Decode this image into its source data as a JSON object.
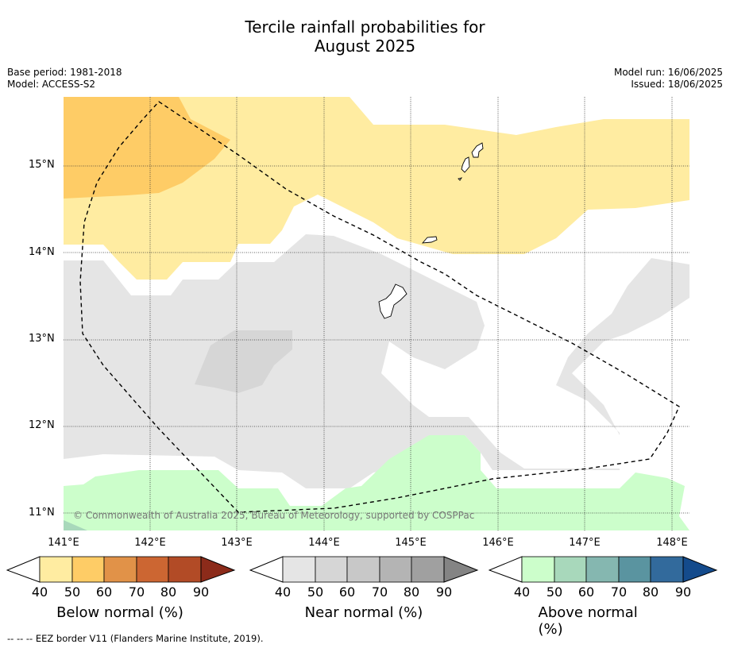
{
  "title_line1": "Tercile rainfall probabilities for",
  "title_line2": "August 2025",
  "meta_left": {
    "base_period": "Base period: 1981-2018",
    "model": "Model: ACCESS-S2"
  },
  "meta_right": {
    "model_run": "Model run: 16/06/2025",
    "issued": "Issued: 18/06/2025"
  },
  "map": {
    "latitude_labels": [
      "15°N",
      "14°N",
      "13°N",
      "12°N",
      "11°N"
    ],
    "longitude_labels": [
      "141°E",
      "142°E",
      "143°E",
      "144°E",
      "145°E",
      "146°E",
      "147°E",
      "148°E"
    ],
    "copyright": "© Commonwealth of Australia 2025, Bureau of Meteorology, supported by COSPPac",
    "colors": {
      "below_50": "#ffeca1",
      "below_60": "#fecc66",
      "near_50": "#e5e5e5",
      "near_60": "#d6d6d6",
      "above_50": "#ccfecb",
      "above_60": "#a8d8bb"
    }
  },
  "colorbars": [
    {
      "title": "Below normal (%)",
      "ticks": [
        "40",
        "50",
        "60",
        "70",
        "80",
        "90"
      ],
      "colors": [
        "#ffeca1",
        "#fecc66",
        "#e19248",
        "#cc6632",
        "#b24b26",
        "#8c2b1a"
      ]
    },
    {
      "title": "Near normal (%)",
      "ticks": [
        "40",
        "50",
        "60",
        "70",
        "80",
        "90"
      ],
      "colors": [
        "#e5e5e5",
        "#d6d6d6",
        "#c8c8c8",
        "#b4b4b4",
        "#a0a0a0",
        "#848484"
      ]
    },
    {
      "title": "Above normal (%)",
      "ticks": [
        "40",
        "50",
        "60",
        "70",
        "80",
        "90"
      ],
      "colors": [
        "#ccfecb",
        "#a8d8bb",
        "#85b7b0",
        "#5a94a0",
        "#326a9c",
        "#144b8c"
      ]
    }
  ],
  "footnote": "--  --  -- EEZ border V11 (Flanders Marine Institute, 2019)."
}
